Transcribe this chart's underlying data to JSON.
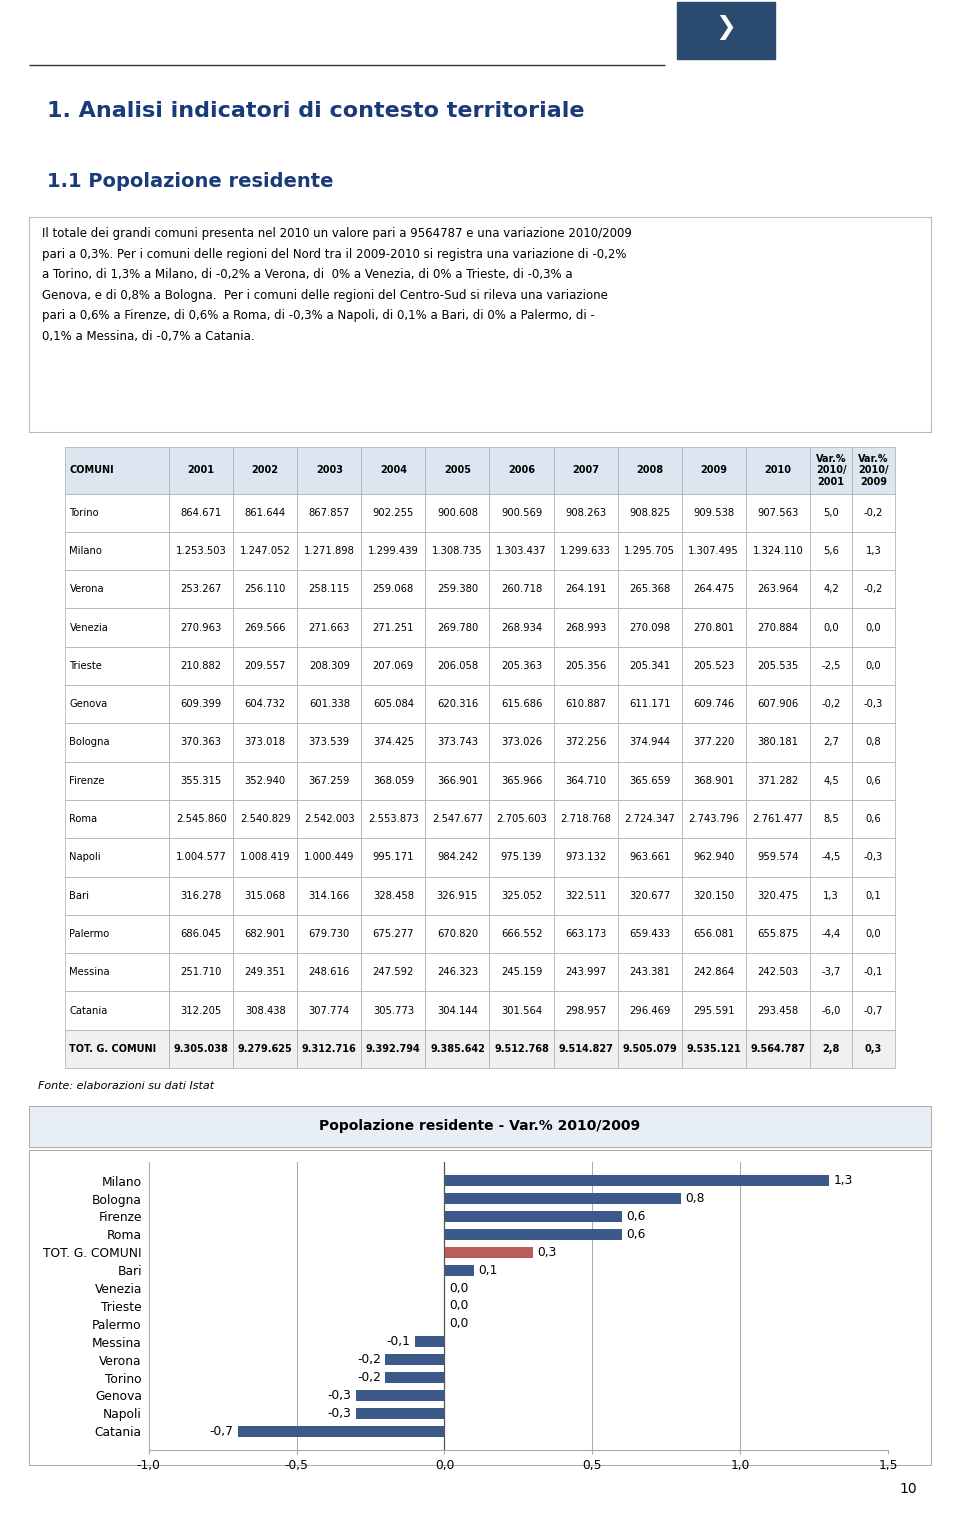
{
  "title1": "1. Analisi indicatori di contesto territoriale",
  "title2": "1.1 Popolazione residente",
  "body_text_lines": [
    "Il totale dei grandi comuni presenta nel 2010 un valore pari a 9564787 e una variazione 2010/2009",
    "pari a 0,3%. Per i comuni delle regioni del Nord tra il 2009-2010 si registra una variazione di -0,2%",
    "a Torino, di 1,3% a Milano, di -0,2% a Verona, di  0% a Venezia, di 0% a Trieste, di -0,3% a",
    "Genova, e di 0,8% a Bologna.  Per i comuni delle regioni del Centro-Sud si rileva una variazione",
    "pari a 0,6% a Firenze, di 0,6% a Roma, di -0,3% a Napoli, di 0,1% a Bari, di 0% a Palermo, di -",
    "0,1% a Messina, di -0,7% a Catania."
  ],
  "table_headers": [
    "COMUNI",
    "2001",
    "2002",
    "2003",
    "2004",
    "2005",
    "2006",
    "2007",
    "2008",
    "2009",
    "2010",
    "Var.%\n2010/\n2001",
    "Var.%\n2010/\n2009"
  ],
  "table_rows": [
    [
      "Torino",
      "864.671",
      "861.644",
      "867.857",
      "902.255",
      "900.608",
      "900.569",
      "908.263",
      "908.825",
      "909.538",
      "907.563",
      "5,0",
      "-0,2"
    ],
    [
      "Milano",
      "1.253.503",
      "1.247.052",
      "1.271.898",
      "1.299.439",
      "1.308.735",
      "1.303.437",
      "1.299.633",
      "1.295.705",
      "1.307.495",
      "1.324.110",
      "5,6",
      "1,3"
    ],
    [
      "Verona",
      "253.267",
      "256.110",
      "258.115",
      "259.068",
      "259.380",
      "260.718",
      "264.191",
      "265.368",
      "264.475",
      "263.964",
      "4,2",
      "-0,2"
    ],
    [
      "Venezia",
      "270.963",
      "269.566",
      "271.663",
      "271.251",
      "269.780",
      "268.934",
      "268.993",
      "270.098",
      "270.801",
      "270.884",
      "0,0",
      "0,0"
    ],
    [
      "Trieste",
      "210.882",
      "209.557",
      "208.309",
      "207.069",
      "206.058",
      "205.363",
      "205.356",
      "205.341",
      "205.523",
      "205.535",
      "-2,5",
      "0,0"
    ],
    [
      "Genova",
      "609.399",
      "604.732",
      "601.338",
      "605.084",
      "620.316",
      "615.686",
      "610.887",
      "611.171",
      "609.746",
      "607.906",
      "-0,2",
      "-0,3"
    ],
    [
      "Bologna",
      "370.363",
      "373.018",
      "373.539",
      "374.425",
      "373.743",
      "373.026",
      "372.256",
      "374.944",
      "377.220",
      "380.181",
      "2,7",
      "0,8"
    ],
    [
      "Firenze",
      "355.315",
      "352.940",
      "367.259",
      "368.059",
      "366.901",
      "365.966",
      "364.710",
      "365.659",
      "368.901",
      "371.282",
      "4,5",
      "0,6"
    ],
    [
      "Roma",
      "2.545.860",
      "2.540.829",
      "2.542.003",
      "2.553.873",
      "2.547.677",
      "2.705.603",
      "2.718.768",
      "2.724.347",
      "2.743.796",
      "2.761.477",
      "8,5",
      "0,6"
    ],
    [
      "Napoli",
      "1.004.577",
      "1.008.419",
      "1.000.449",
      "995.171",
      "984.242",
      "975.139",
      "973.132",
      "963.661",
      "962.940",
      "959.574",
      "-4,5",
      "-0,3"
    ],
    [
      "Bari",
      "316.278",
      "315.068",
      "314.166",
      "328.458",
      "326.915",
      "325.052",
      "322.511",
      "320.677",
      "320.150",
      "320.475",
      "1,3",
      "0,1"
    ],
    [
      "Palermo",
      "686.045",
      "682.901",
      "679.730",
      "675.277",
      "670.820",
      "666.552",
      "663.173",
      "659.433",
      "656.081",
      "655.875",
      "-4,4",
      "0,0"
    ],
    [
      "Messina",
      "251.710",
      "249.351",
      "248.616",
      "247.592",
      "246.323",
      "245.159",
      "243.997",
      "243.381",
      "242.864",
      "242.503",
      "-3,7",
      "-0,1"
    ],
    [
      "Catania",
      "312.205",
      "308.438",
      "307.774",
      "305.773",
      "304.144",
      "301.564",
      "298.957",
      "296.469",
      "295.591",
      "293.458",
      "-6,0",
      "-0,7"
    ],
    [
      "TOT. G. COMUNI",
      "9.305.038",
      "9.279.625",
      "9.312.716",
      "9.392.794",
      "9.385.642",
      "9.512.768",
      "9.514.827",
      "9.505.079",
      "9.535.121",
      "9.564.787",
      "2,8",
      "0,3"
    ]
  ],
  "fonte": "Fonte: elaborazioni su dati Istat",
  "chart_title": "Popolazione residente - Var.% 2010/2009",
  "chart_categories": [
    "Milano",
    "Bologna",
    "Firenze",
    "Roma",
    "TOT. G. COMUNI",
    "Bari",
    "Venezia",
    "Trieste",
    "Palermo",
    "Messina",
    "Verona",
    "Torino",
    "Genova",
    "Napoli",
    "Catania"
  ],
  "chart_values": [
    1.3,
    0.8,
    0.6,
    0.6,
    0.3,
    0.1,
    0.0,
    0.0,
    0.0,
    -0.1,
    -0.2,
    -0.2,
    -0.3,
    -0.3,
    -0.7
  ],
  "bar_color_blue": "#3b5a8a",
  "bar_color_red": "#b85c5c",
  "bg_color": "#ffffff",
  "header_bg": "#dce6f1",
  "table_border_color": "#aaaaaa",
  "chart_outer_bg": "#e8eef5",
  "chart_inner_bg": "#ffffff",
  "page_number": "10",
  "logo_box_color": "#1e3a5f",
  "title_color": "#1a3a7a"
}
